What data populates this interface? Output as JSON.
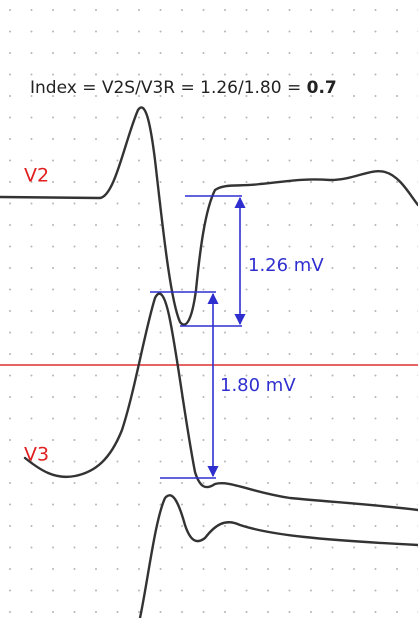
{
  "title": {
    "text": "Index = V2S/V3R = 1.26/1.80 = ",
    "result": "0.7"
  },
  "leads": {
    "v2": "V2",
    "v3": "V3"
  },
  "measurements": {
    "v2_s_wave": "1.26 mV",
    "v3_r_wave": "1.80 mV"
  }
}
